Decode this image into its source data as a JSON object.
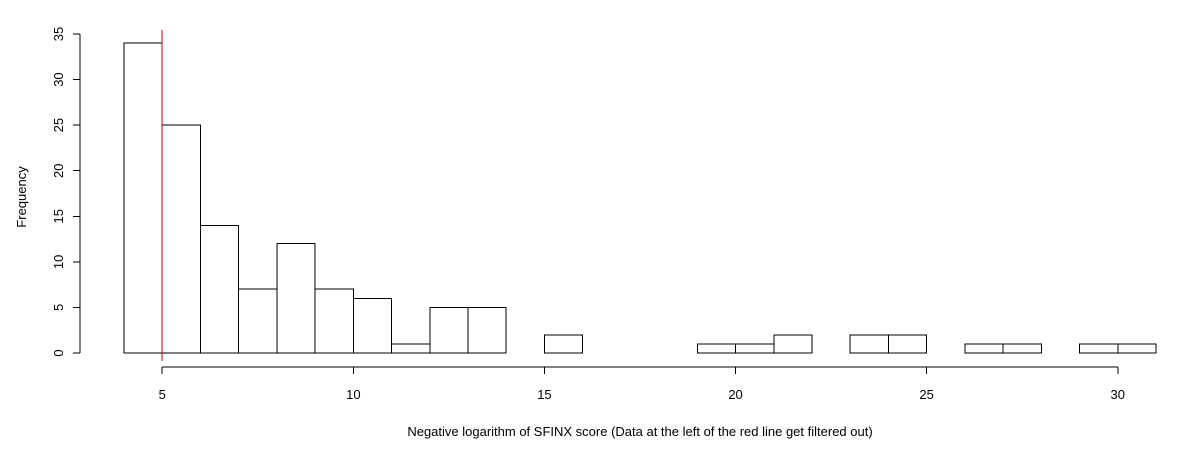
{
  "chart_data": {
    "type": "bar",
    "title": "",
    "xlabel": "Negative logarithm of SFINX score  (Data at the left of the red line get filtered out)",
    "ylabel": "Frequency",
    "xlim": [
      4,
      31
    ],
    "ylim": [
      0,
      35
    ],
    "x_ticks": [
      "5",
      "10",
      "15",
      "20",
      "25",
      "30"
    ],
    "y_ticks": [
      "0",
      "5",
      "10",
      "15",
      "20",
      "25",
      "30",
      "35"
    ],
    "bins": [
      {
        "from": 4,
        "to": 5,
        "count": 34
      },
      {
        "from": 5,
        "to": 6,
        "count": 25
      },
      {
        "from": 6,
        "to": 7,
        "count": 14
      },
      {
        "from": 7,
        "to": 8,
        "count": 7
      },
      {
        "from": 8,
        "to": 9,
        "count": 12
      },
      {
        "from": 9,
        "to": 10,
        "count": 7
      },
      {
        "from": 10,
        "to": 11,
        "count": 6
      },
      {
        "from": 11,
        "to": 12,
        "count": 1
      },
      {
        "from": 12,
        "to": 13,
        "count": 5
      },
      {
        "from": 13,
        "to": 14,
        "count": 5
      },
      {
        "from": 14,
        "to": 15,
        "count": 0
      },
      {
        "from": 15,
        "to": 16,
        "count": 2
      },
      {
        "from": 16,
        "to": 17,
        "count": 0
      },
      {
        "from": 17,
        "to": 18,
        "count": 0
      },
      {
        "from": 18,
        "to": 19,
        "count": 0
      },
      {
        "from": 19,
        "to": 20,
        "count": 1
      },
      {
        "from": 20,
        "to": 21,
        "count": 1
      },
      {
        "from": 21,
        "to": 22,
        "count": 2
      },
      {
        "from": 22,
        "to": 23,
        "count": 0
      },
      {
        "from": 23,
        "to": 24,
        "count": 2
      },
      {
        "from": 24,
        "to": 25,
        "count": 2
      },
      {
        "from": 25,
        "to": 26,
        "count": 0
      },
      {
        "from": 26,
        "to": 27,
        "count": 1
      },
      {
        "from": 27,
        "to": 28,
        "count": 1
      },
      {
        "from": 28,
        "to": 29,
        "count": 0
      },
      {
        "from": 29,
        "to": 30,
        "count": 1
      },
      {
        "from": 30,
        "to": 31,
        "count": 1
      }
    ],
    "threshold_line": {
      "x": 5,
      "color": "#cc0000"
    },
    "bar_fill": "#ffffff",
    "bar_stroke": "#000000",
    "grid": false,
    "legend": "none"
  }
}
